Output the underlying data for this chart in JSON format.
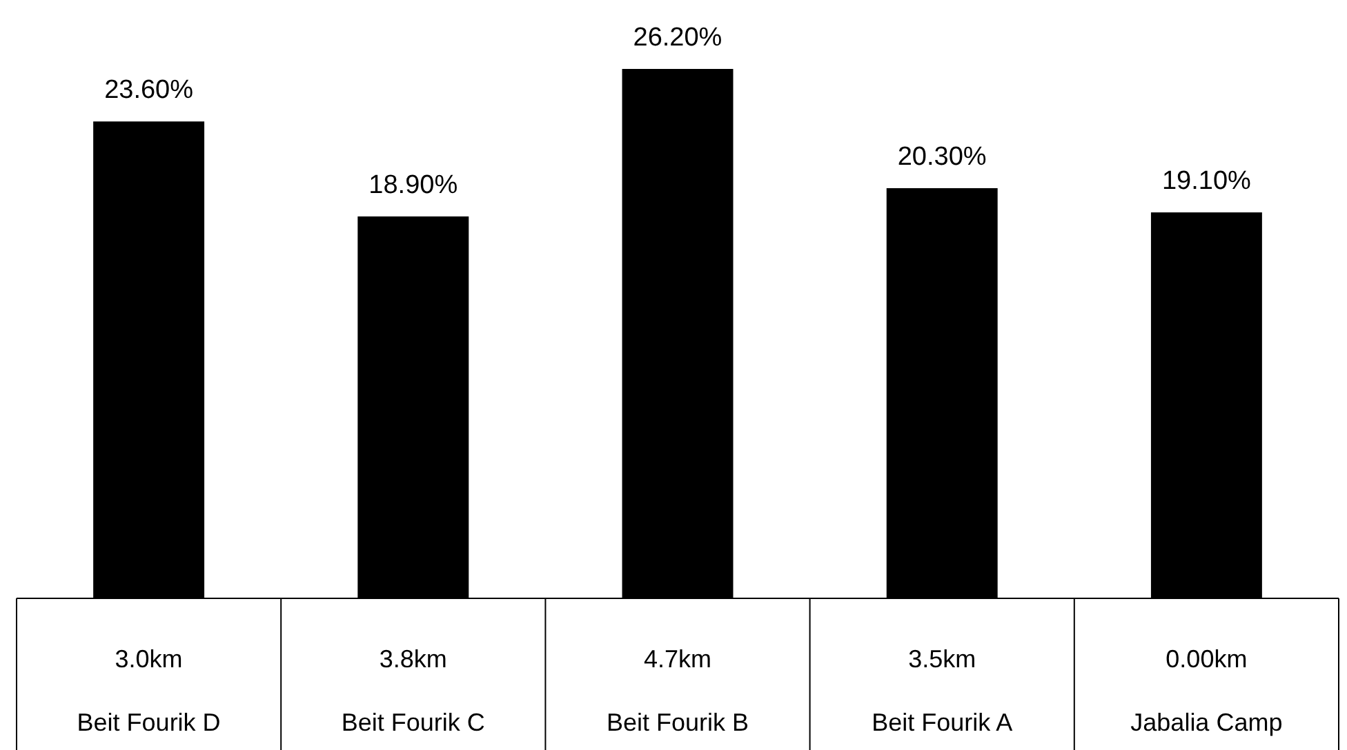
{
  "chart_data": {
    "type": "bar",
    "categories": [
      "3.0km\nBeit Fourik D",
      "3.8km\nBeit Fourik C",
      "4.7km\nBeit Fourik B",
      "3.5km\nBeit Fourik A",
      "0.00km\nJabalia Camp"
    ],
    "values": [
      23.6,
      18.9,
      26.2,
      20.3,
      19.1
    ],
    "value_labels": [
      "23.60%",
      "18.90%",
      "26.20%",
      "20.30%",
      "19.10%"
    ],
    "color": "#000000"
  }
}
